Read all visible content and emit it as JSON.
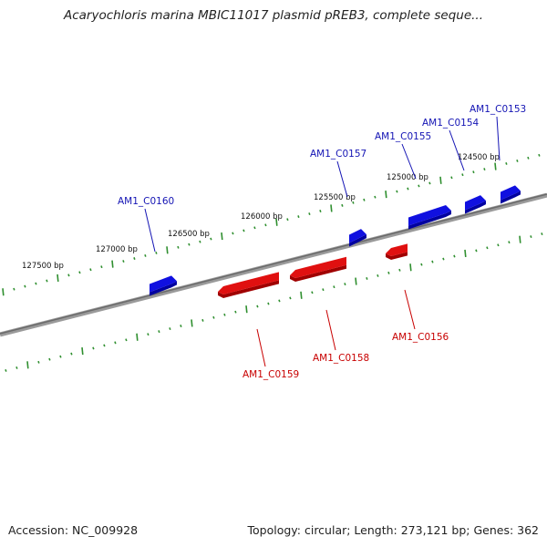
{
  "title": "Acaryochloris marina MBIC11017 plasmid pREB3, complete seque...",
  "footer": {
    "accession": "Accession: NC_009928",
    "summary": "Topology: circular; Length: 273,121 bp; Genes: 362"
  },
  "colors": {
    "forward_gene": "#1010e0",
    "reverse_gene": "#e01010",
    "forward_label": "#1414b4",
    "reverse_label": "#c80000",
    "tick": "#2f8f2f",
    "backbone": "#7a7a7a"
  },
  "ticks": [
    {
      "label": "124500 bp",
      "bp": 124500
    },
    {
      "label": "125000 bp",
      "bp": 125000
    },
    {
      "label": "125500 bp",
      "bp": 125500
    },
    {
      "label": "126000 bp",
      "bp": 126000
    },
    {
      "label": "126500 bp",
      "bp": 126500
    },
    {
      "label": "127000 bp",
      "bp": 127000
    },
    {
      "label": "127500 bp",
      "bp": 127500
    }
  ],
  "genes": [
    {
      "name": "AM1_C0153",
      "strand": "forward"
    },
    {
      "name": "AM1_C0154",
      "strand": "forward"
    },
    {
      "name": "AM1_C0155",
      "strand": "forward"
    },
    {
      "name": "AM1_C0157",
      "strand": "forward"
    },
    {
      "name": "AM1_C0160",
      "strand": "forward"
    },
    {
      "name": "AM1_C0156",
      "strand": "reverse"
    },
    {
      "name": "AM1_C0158",
      "strand": "reverse"
    },
    {
      "name": "AM1_C0159",
      "strand": "reverse"
    }
  ]
}
